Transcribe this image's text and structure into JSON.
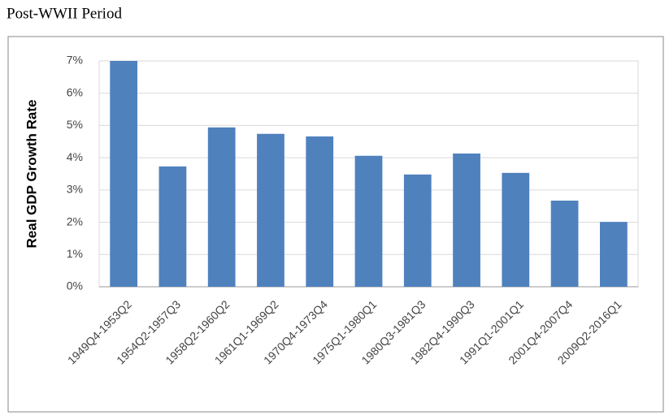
{
  "page_title": "Post-WWII Period",
  "chart_data": {
    "type": "bar",
    "y_label": "Real GDP Growth Rate",
    "categories": [
      "1949Q4-1953Q2",
      "1954Q2-1957Q3",
      "1958Q2-1960Q2",
      "1961Q1-1969Q2",
      "1970Q4-1973Q4",
      "1975Q1-1980Q1",
      "1980Q3-1981Q3",
      "1982Q4-1990Q3",
      "1991Q1-2001Q1",
      "2001Q4-2007Q4",
      "2009Q2-2016Q1"
    ],
    "values": [
      7.0,
      3.73,
      4.94,
      4.74,
      4.66,
      4.06,
      3.48,
      4.13,
      3.53,
      2.67,
      2.01
    ],
    "color": "#4f81bd",
    "ylim": [
      0,
      7
    ],
    "yticks": [
      {
        "value": 0,
        "label": "0%"
      },
      {
        "value": 1,
        "label": "1%"
      },
      {
        "value": 2,
        "label": "2%"
      },
      {
        "value": 3,
        "label": "3%"
      },
      {
        "value": 4,
        "label": "4%"
      },
      {
        "value": 5,
        "label": "5%"
      },
      {
        "value": 6,
        "label": "6%"
      },
      {
        "value": 7,
        "label": "7%"
      }
    ],
    "grid": true
  }
}
